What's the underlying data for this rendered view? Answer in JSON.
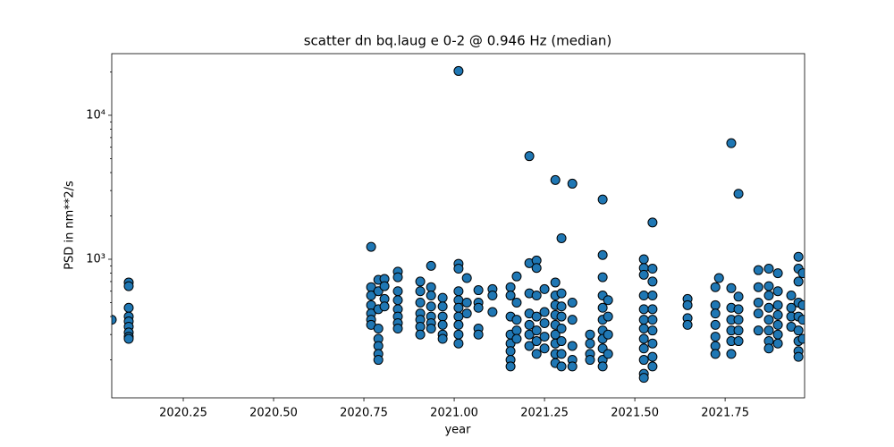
{
  "chart_data": {
    "type": "scatter",
    "title": "scatter dn bq.laug e 0-2 @ 0.946 Hz (median)",
    "xlabel": "year",
    "ylabel": "PSD in nm**2/s",
    "xlim": [
      2020.052,
      2021.97
    ],
    "ylim": [
      109,
      26800
    ],
    "ylog": true,
    "xticks": [
      2020.25,
      {
        "value": 2020.5,
        "label": "2020.50"
      },
      2020.75,
      {
        "value": 2021.0,
        "label": "2021.00"
      },
      2021.25,
      {
        "value": 2021.5,
        "label": "2021.50"
      },
      2021.75
    ],
    "yticks": [
      {
        "value": 1000,
        "label": "10³"
      },
      {
        "value": 10000,
        "label": "10⁴"
      }
    ],
    "yminorticks": [
      200,
      300,
      400,
      500,
      600,
      700,
      800,
      900,
      2000,
      3000,
      4000,
      5000,
      6000,
      7000,
      8000,
      9000,
      20000
    ],
    "series": [
      {
        "color": "#1f77b4",
        "edgecolor": "#000000",
        "x": [
          2020.052,
          2020.099,
          2020.099,
          2020.099,
          2020.099,
          2020.099,
          2020.099,
          2020.099,
          2020.099,
          2020.099,
          2020.77,
          2020.77,
          2020.77,
          2020.77,
          2020.77,
          2020.77,
          2020.77,
          2020.79,
          2020.79,
          2020.79,
          2020.79,
          2020.79,
          2020.79,
          2020.79,
          2020.79,
          2020.807,
          2020.807,
          2020.807,
          2020.807,
          2020.844,
          2020.844,
          2020.844,
          2020.844,
          2020.844,
          2020.844,
          2020.844,
          2020.844,
          2020.906,
          2020.906,
          2020.906,
          2020.906,
          2020.906,
          2020.906,
          2020.906,
          2020.936,
          2020.936,
          2020.936,
          2020.936,
          2020.936,
          2020.936,
          2020.936,
          2020.968,
          2020.968,
          2020.968,
          2020.968,
          2020.968,
          2020.968,
          2021.012,
          2021.012,
          2021.012,
          2021.012,
          2021.012,
          2021.012,
          2021.012,
          2021.012,
          2021.012,
          2021.012,
          2021.035,
          2021.035,
          2021.035,
          2021.067,
          2021.067,
          2021.067,
          2021.067,
          2021.067,
          2021.106,
          2021.106,
          2021.106,
          2021.156,
          2021.156,
          2021.156,
          2021.156,
          2021.156,
          2021.156,
          2021.156,
          2021.156,
          2021.173,
          2021.173,
          2021.173,
          2021.173,
          2021.173,
          2021.208,
          2021.208,
          2021.208,
          2021.208,
          2021.208,
          2021.208,
          2021.208,
          2021.228,
          2021.228,
          2021.228,
          2021.228,
          2021.228,
          2021.228,
          2021.228,
          2021.25,
          2021.25,
          2021.25,
          2021.25,
          2021.25,
          2021.28,
          2021.28,
          2021.28,
          2021.28,
          2021.28,
          2021.28,
          2021.28,
          2021.28,
          2021.28,
          2021.28,
          2021.297,
          2021.297,
          2021.297,
          2021.297,
          2021.297,
          2021.297,
          2021.297,
          2021.297,
          2021.327,
          2021.327,
          2021.327,
          2021.327,
          2021.327,
          2021.327,
          2021.376,
          2021.376,
          2021.376,
          2021.376,
          2021.411,
          2021.411,
          2021.411,
          2021.411,
          2021.411,
          2021.411,
          2021.411,
          2021.411,
          2021.411,
          2021.411,
          2021.411,
          2021.426,
          2021.426,
          2021.426,
          2021.426,
          2021.525,
          2021.525,
          2021.525,
          2021.525,
          2021.525,
          2021.525,
          2021.525,
          2021.525,
          2021.525,
          2021.525,
          2021.525,
          2021.525,
          2021.549,
          2021.549,
          2021.549,
          2021.549,
          2021.549,
          2021.549,
          2021.549,
          2021.549,
          2021.549,
          2021.549,
          2021.646,
          2021.646,
          2021.646,
          2021.646,
          2021.723,
          2021.723,
          2021.723,
          2021.723,
          2021.723,
          2021.723,
          2021.723,
          2021.733,
          2021.767,
          2021.767,
          2021.767,
          2021.767,
          2021.767,
          2021.767,
          2021.767,
          2021.787,
          2021.787,
          2021.787,
          2021.787,
          2021.787,
          2021.787,
          2021.842,
          2021.842,
          2021.842,
          2021.842,
          2021.842,
          2021.871,
          2021.871,
          2021.871,
          2021.871,
          2021.871,
          2021.871,
          2021.871,
          2021.871,
          2021.896,
          2021.896,
          2021.896,
          2021.896,
          2021.896,
          2021.896,
          2021.896,
          2021.933,
          2021.933,
          2021.933,
          2021.933,
          2021.953,
          2021.953,
          2021.953,
          2021.953,
          2021.953,
          2021.953,
          2021.953,
          2021.953,
          2021.953,
          2021.965,
          2021.965,
          2021.965,
          2021.965
        ],
        "values": [
          380,
          690,
          650,
          460,
          400,
          370,
          340,
          310,
          290,
          280,
          1220,
          640,
          560,
          480,
          420,
          380,
          350,
          720,
          600,
          450,
          330,
          280,
          250,
          220,
          200,
          730,
          650,
          530,
          470,
          820,
          750,
          600,
          520,
          450,
          400,
          360,
          330,
          700,
          600,
          500,
          420,
          380,
          340,
          300,
          900,
          640,
          560,
          470,
          400,
          360,
          330,
          540,
          470,
          400,
          350,
          300,
          280,
          20300,
          930,
          860,
          600,
          520,
          460,
          400,
          350,
          300,
          260,
          740,
          500,
          420,
          610,
          500,
          460,
          330,
          300,
          620,
          560,
          430,
          640,
          560,
          400,
          300,
          260,
          230,
          200,
          180,
          760,
          500,
          380,
          320,
          280,
          5200,
          940,
          580,
          420,
          350,
          300,
          250,
          980,
          870,
          560,
          400,
          320,
          270,
          220,
          620,
          430,
          360,
          290,
          240,
          3550,
          690,
          560,
          480,
          410,
          350,
          300,
          260,
          220,
          190,
          1400,
          580,
          470,
          400,
          330,
          270,
          220,
          180,
          3350,
          500,
          380,
          250,
          200,
          180,
          300,
          260,
          220,
          200,
          2600,
          1070,
          750,
          560,
          460,
          380,
          320,
          280,
          240,
          200,
          180,
          520,
          400,
          300,
          220,
          1000,
          870,
          780,
          560,
          450,
          380,
          330,
          280,
          240,
          200,
          160,
          150,
          1800,
          860,
          700,
          560,
          450,
          380,
          320,
          260,
          210,
          180,
          530,
          480,
          390,
          350,
          640,
          480,
          420,
          350,
          290,
          250,
          220,
          740,
          6400,
          630,
          460,
          380,
          320,
          270,
          220,
          2850,
          550,
          450,
          380,
          320,
          270,
          840,
          640,
          500,
          420,
          320,
          860,
          650,
          560,
          460,
          380,
          320,
          270,
          240,
          800,
          600,
          480,
          410,
          350,
          300,
          260,
          560,
          460,
          400,
          340,
          1040,
          860,
          700,
          500,
          400,
          320,
          270,
          230,
          210,
          800,
          480,
          380,
          280
        ]
      }
    ]
  }
}
